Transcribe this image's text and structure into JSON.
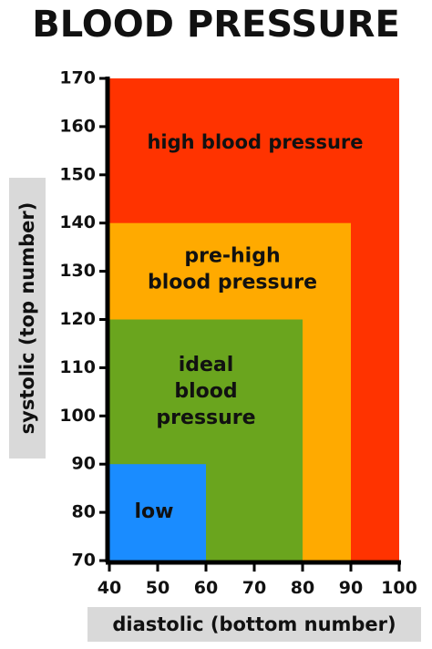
{
  "title": "BLOOD PRESSURE",
  "chart_data": {
    "type": "area",
    "title": "BLOOD PRESSURE",
    "xlabel": "diastolic (bottom number)",
    "ylabel": "systolic (top number)",
    "xlim": [
      40,
      100
    ],
    "ylim": [
      70,
      170
    ],
    "x_ticks": [
      40,
      50,
      60,
      70,
      80,
      90,
      100
    ],
    "y_ticks": [
      70,
      80,
      90,
      100,
      110,
      120,
      130,
      140,
      150,
      160,
      170
    ],
    "grid": false,
    "legend": "none",
    "regions": [
      {
        "label_lines": [
          "high blood pressure"
        ],
        "x_max": 100,
        "y_max": 170,
        "color": "#ff3300"
      },
      {
        "label_lines": [
          "pre-high",
          "blood pressure"
        ],
        "x_max": 90,
        "y_max": 140,
        "color": "#ffaa00"
      },
      {
        "label_lines": [
          "ideal",
          "blood",
          "pressure"
        ],
        "x_max": 80,
        "y_max": 120,
        "color": "#6aa51e"
      },
      {
        "label_lines": [
          "low"
        ],
        "x_max": 60,
        "y_max": 90,
        "color": "#1a8cff"
      }
    ]
  }
}
